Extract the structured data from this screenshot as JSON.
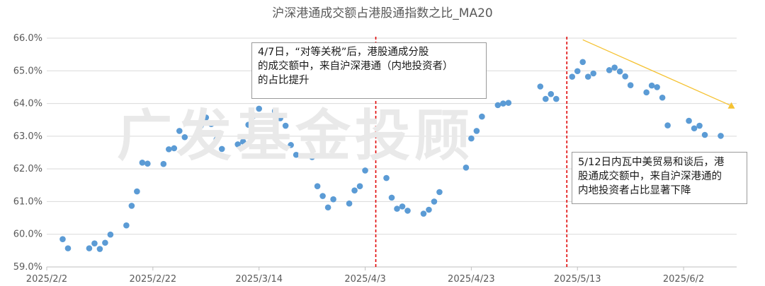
{
  "chart_data": {
    "type": "scatter",
    "title": "沪深港通成交额占港股通指数之比_MA20",
    "xlabel": "",
    "ylabel": "",
    "x_tick_labels": [
      "2025/2/2",
      "2025/2/22",
      "2025/3/14",
      "2025/4/3",
      "2025/4/23",
      "2025/5/13",
      "2025/6/2"
    ],
    "x_tick_dates": [
      "2025-02-02",
      "2025-02-22",
      "2025-03-14",
      "2025-04-03",
      "2025-04-23",
      "2025-05-13",
      "2025-06-02"
    ],
    "xlim": [
      "2025-02-02",
      "2025-06-12"
    ],
    "y_tick_labels": [
      "59.0%",
      "60.0%",
      "61.0%",
      "62.0%",
      "63.0%",
      "64.0%",
      "65.0%",
      "66.0%"
    ],
    "ylim": [
      59.0,
      66.0
    ],
    "y_unit": "%",
    "grid": "horizontal",
    "marker_color": "#5b9bd5",
    "points": [
      {
        "x": "2025-02-05",
        "y": 59.85
      },
      {
        "x": "2025-02-06",
        "y": 59.57
      },
      {
        "x": "2025-02-10",
        "y": 59.57
      },
      {
        "x": "2025-02-11",
        "y": 59.72
      },
      {
        "x": "2025-02-12",
        "y": 59.55
      },
      {
        "x": "2025-02-13",
        "y": 59.74
      },
      {
        "x": "2025-02-14",
        "y": 59.99
      },
      {
        "x": "2025-02-17",
        "y": 60.27
      },
      {
        "x": "2025-02-18",
        "y": 60.87
      },
      {
        "x": "2025-02-19",
        "y": 61.31
      },
      {
        "x": "2025-02-20",
        "y": 62.19
      },
      {
        "x": "2025-02-21",
        "y": 62.16
      },
      {
        "x": "2025-02-24",
        "y": 62.15
      },
      {
        "x": "2025-02-25",
        "y": 62.6
      },
      {
        "x": "2025-02-26",
        "y": 62.63
      },
      {
        "x": "2025-02-27",
        "y": 63.16
      },
      {
        "x": "2025-02-28",
        "y": 62.97
      },
      {
        "x": "2025-03-03",
        "y": 63.31
      },
      {
        "x": "2025-03-04",
        "y": 63.57
      },
      {
        "x": "2025-03-05",
        "y": 63.37
      },
      {
        "x": "2025-03-06",
        "y": 62.9
      },
      {
        "x": "2025-03-07",
        "y": 62.61
      },
      {
        "x": "2025-03-10",
        "y": 62.75
      },
      {
        "x": "2025-03-11",
        "y": 62.83
      },
      {
        "x": "2025-03-12",
        "y": 63.35
      },
      {
        "x": "2025-03-13",
        "y": 63.63
      },
      {
        "x": "2025-03-14",
        "y": 63.84
      },
      {
        "x": "2025-03-17",
        "y": 63.77
      },
      {
        "x": "2025-03-18",
        "y": 63.55
      },
      {
        "x": "2025-03-19",
        "y": 63.32
      },
      {
        "x": "2025-03-20",
        "y": 62.73
      },
      {
        "x": "2025-03-21",
        "y": 62.43
      },
      {
        "x": "2025-03-24",
        "y": 62.36
      },
      {
        "x": "2025-03-25",
        "y": 61.47
      },
      {
        "x": "2025-03-26",
        "y": 61.17
      },
      {
        "x": "2025-03-27",
        "y": 60.82
      },
      {
        "x": "2025-03-28",
        "y": 61.07
      },
      {
        "x": "2025-03-31",
        "y": 60.94
      },
      {
        "x": "2025-04-01",
        "y": 61.34
      },
      {
        "x": "2025-04-02",
        "y": 61.47
      },
      {
        "x": "2025-04-03",
        "y": 61.95
      },
      {
        "x": "2025-04-07",
        "y": 61.72
      },
      {
        "x": "2025-04-08",
        "y": 61.12
      },
      {
        "x": "2025-04-09",
        "y": 60.78
      },
      {
        "x": "2025-04-10",
        "y": 60.85
      },
      {
        "x": "2025-04-11",
        "y": 60.72
      },
      {
        "x": "2025-04-14",
        "y": 60.63
      },
      {
        "x": "2025-04-15",
        "y": 60.75
      },
      {
        "x": "2025-04-16",
        "y": 61.0
      },
      {
        "x": "2025-04-17",
        "y": 61.29
      },
      {
        "x": "2025-04-22",
        "y": 62.04
      },
      {
        "x": "2025-04-23",
        "y": 62.93
      },
      {
        "x": "2025-04-24",
        "y": 63.16
      },
      {
        "x": "2025-04-25",
        "y": 63.6
      },
      {
        "x": "2025-04-28",
        "y": 63.95
      },
      {
        "x": "2025-04-29",
        "y": 64.0
      },
      {
        "x": "2025-04-30",
        "y": 64.02
      },
      {
        "x": "2025-05-06",
        "y": 64.52
      },
      {
        "x": "2025-05-07",
        "y": 64.14
      },
      {
        "x": "2025-05-08",
        "y": 64.29
      },
      {
        "x": "2025-05-09",
        "y": 64.14
      },
      {
        "x": "2025-05-12",
        "y": 64.82
      },
      {
        "x": "2025-05-13",
        "y": 64.99
      },
      {
        "x": "2025-05-14",
        "y": 65.27
      },
      {
        "x": "2025-05-15",
        "y": 64.82
      },
      {
        "x": "2025-05-16",
        "y": 64.92
      },
      {
        "x": "2025-05-19",
        "y": 65.02
      },
      {
        "x": "2025-05-20",
        "y": 65.1
      },
      {
        "x": "2025-05-21",
        "y": 64.98
      },
      {
        "x": "2025-05-22",
        "y": 64.83
      },
      {
        "x": "2025-05-23",
        "y": 64.56
      },
      {
        "x": "2025-05-26",
        "y": 64.34
      },
      {
        "x": "2025-05-27",
        "y": 64.55
      },
      {
        "x": "2025-05-28",
        "y": 64.5
      },
      {
        "x": "2025-05-29",
        "y": 64.18
      },
      {
        "x": "2025-05-30",
        "y": 63.33
      },
      {
        "x": "2025-06-03",
        "y": 63.47
      },
      {
        "x": "2025-06-04",
        "y": 63.24
      },
      {
        "x": "2025-06-05",
        "y": 63.32
      },
      {
        "x": "2025-06-06",
        "y": 63.04
      },
      {
        "x": "2025-06-09",
        "y": 63.01
      }
    ],
    "vertical_lines": [
      {
        "x": "2025-04-05",
        "color": "#e00000"
      },
      {
        "x": "2025-05-11",
        "color": "#e00000"
      }
    ],
    "trend_arrow": {
      "from": {
        "x": "2025-05-14",
        "y": 65.95
      },
      "to": {
        "x": "2025-06-11",
        "y": 63.93
      },
      "color": "#f5c232"
    },
    "annotations": [
      {
        "text": "4/7日，“对等关税”后，港股通成分股\n的成交额中，来自沪深港通（内地投资者）\n的占比提升"
      },
      {
        "text": "5/12日内瓦中美贸易和谈后，港\n股通成交额中，来自沪深港通的\n内地投资者占比显著下降"
      }
    ]
  },
  "watermark_text": "广发基金投顾"
}
